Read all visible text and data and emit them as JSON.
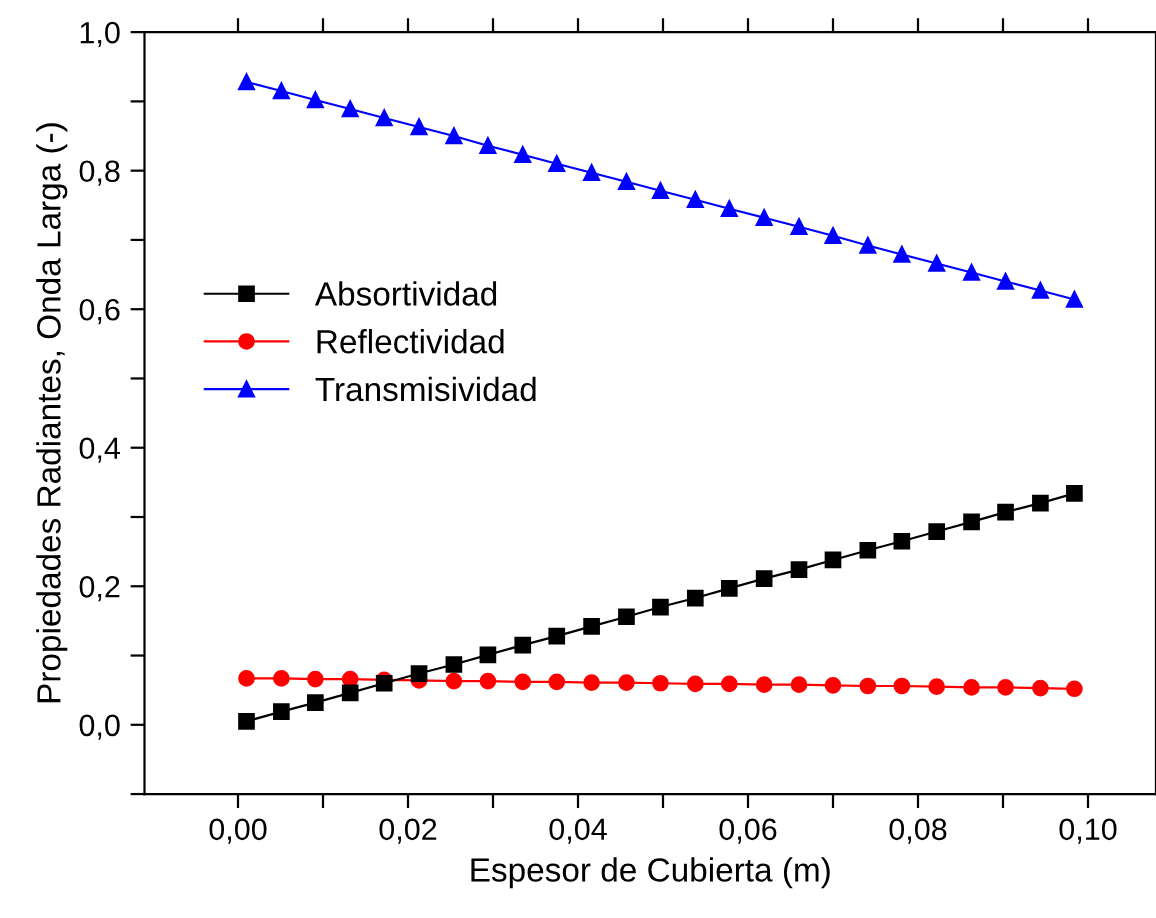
{
  "chart_data": {
    "type": "line",
    "xlabel": "Espesor de Cubierta (m)",
    "ylabel": "Propiedades Radiantes, Onda Larga (-)",
    "x": [
      0.001,
      0.0051,
      0.0091,
      0.0132,
      0.0172,
      0.0213,
      0.0254,
      0.0294,
      0.0335,
      0.0375,
      0.0416,
      0.0457,
      0.0497,
      0.0538,
      0.0578,
      0.0619,
      0.066,
      0.07,
      0.0741,
      0.0781,
      0.0822,
      0.0863,
      0.0903,
      0.0944,
      0.0984
    ],
    "series": [
      {
        "name": "Absortividad",
        "color": "#000000",
        "marker": "square",
        "values": [
          0.005,
          0.019,
          0.032,
          0.046,
          0.06,
          0.074,
          0.087,
          0.101,
          0.115,
          0.128,
          0.142,
          0.156,
          0.17,
          0.183,
          0.197,
          0.211,
          0.224,
          0.238,
          0.252,
          0.265,
          0.279,
          0.293,
          0.307,
          0.32,
          0.334
        ]
      },
      {
        "name": "Reflectividad",
        "color": "#ff0000",
        "marker": "circle",
        "values": [
          0.067,
          0.067,
          0.066,
          0.066,
          0.065,
          0.064,
          0.063,
          0.063,
          0.062,
          0.062,
          0.061,
          0.061,
          0.06,
          0.059,
          0.059,
          0.058,
          0.058,
          0.057,
          0.056,
          0.056,
          0.055,
          0.054,
          0.054,
          0.053,
          0.052
        ]
      },
      {
        "name": "Transmisividad",
        "color": "#0000ff",
        "marker": "triangle",
        "values": [
          0.928,
          0.915,
          0.902,
          0.889,
          0.876,
          0.863,
          0.85,
          0.836,
          0.823,
          0.81,
          0.797,
          0.784,
          0.771,
          0.758,
          0.745,
          0.732,
          0.719,
          0.706,
          0.692,
          0.679,
          0.666,
          0.653,
          0.64,
          0.627,
          0.614
        ]
      }
    ],
    "xlim": [
      -0.011,
      0.108
    ],
    "ylim": [
      -0.1,
      1.0
    ],
    "xticks": [
      {
        "value": 0.0,
        "label": "0,00"
      },
      {
        "value": 0.01,
        "label": null
      },
      {
        "value": 0.02,
        "label": "0,02"
      },
      {
        "value": 0.03,
        "label": null
      },
      {
        "value": 0.04,
        "label": "0,04"
      },
      {
        "value": 0.05,
        "label": null
      },
      {
        "value": 0.06,
        "label": "0,06"
      },
      {
        "value": 0.07,
        "label": null
      },
      {
        "value": 0.08,
        "label": "0,08"
      },
      {
        "value": 0.09,
        "label": null
      },
      {
        "value": 0.1,
        "label": "0,10"
      }
    ],
    "yticks": [
      {
        "value": -0.1,
        "label": null
      },
      {
        "value": 0.0,
        "label": "0,0"
      },
      {
        "value": 0.1,
        "label": null
      },
      {
        "value": 0.2,
        "label": "0,2"
      },
      {
        "value": 0.3,
        "label": null
      },
      {
        "value": 0.4,
        "label": "0,4"
      },
      {
        "value": 0.5,
        "label": null
      },
      {
        "value": 0.6,
        "label": "0,6"
      },
      {
        "value": 0.7,
        "label": null
      },
      {
        "value": 0.8,
        "label": "0,8"
      },
      {
        "value": 0.9,
        "label": null
      },
      {
        "value": 1.0,
        "label": "1,0"
      }
    ],
    "grid": false,
    "legend": "left",
    "line_style": "solid"
  }
}
